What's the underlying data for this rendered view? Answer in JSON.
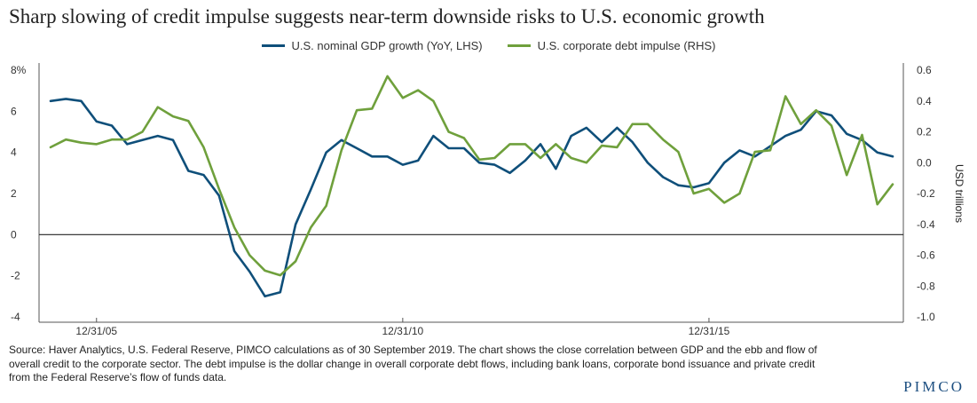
{
  "title": "Sharp slowing of credit impulse suggests near-term downside risks to U.S. economic growth",
  "legend": [
    {
      "name": "U.S. nominal GDP growth (YoY, LHS)",
      "color": "#0f4f7a"
    },
    {
      "name": "U.S. corporate debt impulse (RHS)",
      "color": "#6fa03c"
    }
  ],
  "source": "Source: Haver Analytics, U.S. Federal Reserve, PIMCO calculations as of 30 September 2019. The chart shows the close correlation between GDP and the ebb and flow of overall credit to the corporate sector. The debt impulse is the dollar change in overall corporate debt flows, including bank loans, corporate bond issuance and private credit from the Federal Reserve’s flow of funds data.",
  "logo": "PIMCO",
  "chart_data": {
    "type": "line",
    "title": "Sharp slowing of credit impulse suggests near-term downside risks to U.S. economic growth",
    "x_quarters_start": "2005Q1",
    "x_ticks": [
      {
        "label": "12/31/05",
        "index": 3
      },
      {
        "label": "12/31/10",
        "index": 23
      },
      {
        "label": "12/31/15",
        "index": 43
      }
    ],
    "y_left": {
      "min": -4,
      "max": 8,
      "ticks": [
        "8%",
        "6",
        "4",
        "2",
        "0",
        "-2",
        "-4"
      ],
      "tick_values": [
        8,
        6,
        4,
        2,
        0,
        -2,
        -4
      ]
    },
    "y_right": {
      "min": -1.0,
      "max": 0.6,
      "label": "USD trillions",
      "ticks": [
        "0.6",
        "0.4",
        "0.2",
        "0.0",
        "-0.2",
        "-0.4",
        "-0.6",
        "-0.8",
        "-1.0"
      ],
      "tick_values": [
        0.6,
        0.4,
        0.2,
        0.0,
        -0.2,
        -0.4,
        -0.6,
        -0.8,
        -1.0
      ]
    },
    "zero_line": 0,
    "series": [
      {
        "name": "U.S. nominal GDP growth (YoY, LHS)",
        "axis": "left",
        "color": "#0f4f7a",
        "values": [
          6.5,
          6.6,
          6.5,
          5.5,
          5.3,
          4.4,
          4.6,
          4.8,
          4.6,
          3.1,
          2.9,
          1.9,
          -0.8,
          -1.8,
          -3.0,
          -2.8,
          0.5,
          2.2,
          4.0,
          4.6,
          4.2,
          3.8,
          3.8,
          3.4,
          3.6,
          4.8,
          4.2,
          4.2,
          3.5,
          3.4,
          3.0,
          3.6,
          4.4,
          3.2,
          4.8,
          5.2,
          4.5,
          5.2,
          4.5,
          3.5,
          2.8,
          2.4,
          2.3,
          2.5,
          3.5,
          4.1,
          3.8,
          4.3,
          4.8,
          5.1,
          6.0,
          5.8,
          4.9,
          4.6,
          4.0,
          3.8
        ]
      },
      {
        "name": "U.S. corporate debt impulse (RHS)",
        "axis": "right",
        "color": "#6fa03c",
        "values": [
          0.1,
          0.15,
          0.13,
          0.12,
          0.15,
          0.15,
          0.2,
          0.36,
          0.3,
          0.27,
          0.1,
          -0.17,
          -0.42,
          -0.6,
          -0.7,
          -0.73,
          -0.64,
          -0.42,
          -0.28,
          0.08,
          0.34,
          0.35,
          0.56,
          0.42,
          0.47,
          0.4,
          0.2,
          0.16,
          0.02,
          0.03,
          0.12,
          0.12,
          0.03,
          0.12,
          0.03,
          0.0,
          0.11,
          0.1,
          0.25,
          0.25,
          0.15,
          0.07,
          -0.2,
          -0.17,
          -0.26,
          -0.2,
          0.07,
          0.08,
          0.43,
          0.25,
          0.34,
          0.24,
          -0.08,
          0.18,
          -0.27,
          -0.14
        ]
      }
    ],
    "grid": false,
    "legend_position": "top-center"
  }
}
